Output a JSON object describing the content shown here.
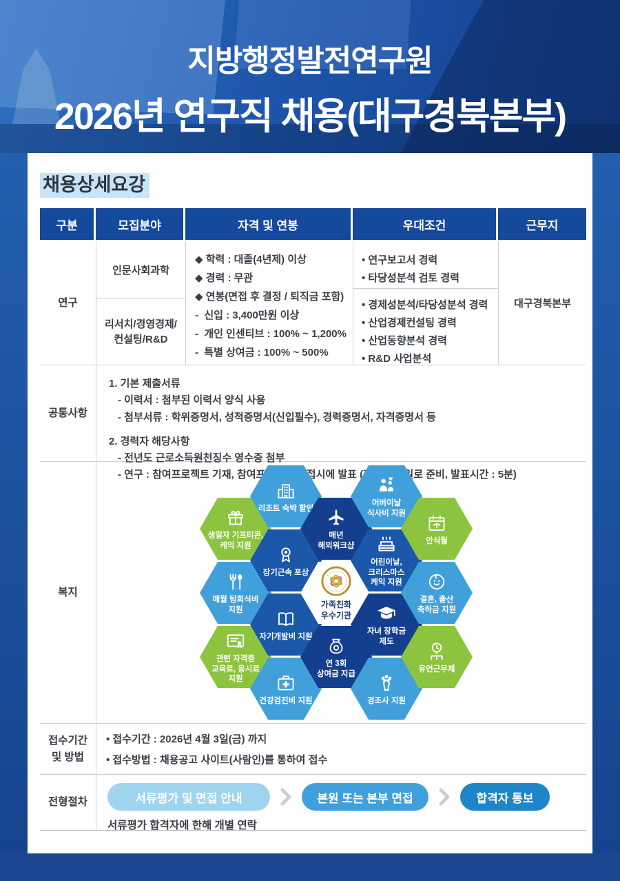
{
  "colors": {
    "page_blue_top": "#2565b6",
    "page_blue_bottom": "#16438c",
    "brand_navy": "#15499b",
    "highlight_blue": "#c7e5f7",
    "hex_lightblue": "#41a0da",
    "hex_green": "#8cc43f",
    "hex_navy": "#143f8e",
    "hex_royal": "#1b58a9",
    "pill_light": "#9fd4f1",
    "pill_mid": "#3fa0dc",
    "pill_dark": "#1e85c9",
    "footer_blue": "#1b4791"
  },
  "header": {
    "title_line1": "지방행정발전연구원",
    "title_line2": "2026년 연구직 채용(대구경북본부)"
  },
  "section_title": "채용상세요강",
  "table": {
    "columns": [
      "구분",
      "모집분야",
      "자격 및 연봉",
      "우대조건",
      "근무지"
    ],
    "research": {
      "category": "연구",
      "field_top": "인문사회과학",
      "field_bottom": "리서치/경영경제/\n컨설팅/R&D",
      "qual_diamonds": [
        "◆ 학력 : 대졸(4년제) 이상",
        "◆ 경력 : 무관",
        "◆ 연봉(면접 후 결정 / 퇴직금 포함)"
      ],
      "qual_dashes": [
        "-  신입 : 3,400만원 이상",
        "-  개인 인센티브 : 100% ~ 1,200%",
        "-  특별 상여금 : 100% ~ 500%"
      ],
      "preferred_top": [
        "• 연구보고서 경력",
        "• 타당성분석 검토 경력"
      ],
      "preferred_bottom": [
        "• 경제성분석/타당성분석 경력",
        "• 산업경제컨설팅 경력",
        "• 산업동향분석 경력",
        "• R&D 사업분석"
      ],
      "location": "대구경북본부"
    },
    "common": {
      "category": "공통사항",
      "group1_title": "1. 기본 제출서류",
      "group1_items": [
        "- 이력서 : 첨부된 이력서 양식 사용",
        "- 첨부서류 : 학위증명서, 성적증명서(신입필수), 경력증명서, 자격증명서 등"
      ],
      "group2_title": "2. 경력자 해당사항",
      "group2_items": [
        "- 전년도 근로소득원천징수 영수증 첨부",
        "- 연구 : 참여프로젝트 기재, 참여프로젝트 면접시에 발표 (자료는 파일로 준비, 발표시간 : 5분)"
      ]
    },
    "welfare": {
      "category": "복지",
      "hexagons": [
        {
          "label": "생일자 기프티콘,\n케익 지원",
          "color": "green",
          "icon": "gift",
          "col": 0,
          "row": 0
        },
        {
          "label": "매월 팀회식비\n지원",
          "color": "lightblue",
          "icon": "cutlery",
          "col": 0,
          "row": 1
        },
        {
          "label": "관련 자격증\n교육료, 응시료\n지원",
          "color": "green",
          "icon": "certificate",
          "col": 0,
          "row": 2
        },
        {
          "label": "리조트 숙박 할인",
          "color": "lightblue",
          "icon": "resort",
          "col": 1,
          "row": 0
        },
        {
          "label": "장기근속 포상",
          "color": "royal",
          "icon": "medal",
          "col": 1,
          "row": 1
        },
        {
          "label": "자기개발비 지원",
          "color": "royal",
          "icon": "book",
          "col": 1,
          "row": 2
        },
        {
          "label": "건강검진비 지원",
          "color": "lightblue",
          "icon": "first-aid",
          "col": 1,
          "row": 3
        },
        {
          "label": "매년\n해외워크샵",
          "color": "navy",
          "icon": "airplane",
          "col": 2,
          "row": 0
        },
        {
          "label": "가족친화\n우수기관",
          "color": "white",
          "icon": "family-seal",
          "col": 2,
          "row": 1
        },
        {
          "label": "연 3회\n상여금 지급",
          "color": "navy",
          "icon": "money-bag",
          "col": 2,
          "row": 2
        },
        {
          "label": "어버이날\n식사비 지원",
          "color": "lightblue",
          "icon": "family",
          "col": 3,
          "row": 0
        },
        {
          "label": "어린이날,\n크리스마스\n케익 지원",
          "color": "royal",
          "icon": "cake",
          "col": 3,
          "row": 1
        },
        {
          "label": "자녀 장학금\n제도",
          "color": "navy",
          "icon": "graduation-cap",
          "col": 3,
          "row": 2
        },
        {
          "label": "경조사 지원",
          "color": "lightblue",
          "icon": "bouquet",
          "col": 3,
          "row": 3
        },
        {
          "label": "안식월",
          "color": "green",
          "icon": "calendar",
          "col": 4,
          "row": 0
        },
        {
          "label": "결혼, 출산\n축하금 지원",
          "color": "lightblue",
          "icon": "baby",
          "col": 4,
          "row": 1
        },
        {
          "label": "유연근무제",
          "color": "green",
          "icon": "flex-time",
          "col": 4,
          "row": 2
        }
      ]
    },
    "apply": {
      "category": "접수기간\n및 방법",
      "line1_prefix": "• 접수기간 : ",
      "line1_bold": "2026년 4월 3일(금) 까지",
      "line2": "• 접수방법 : 채용공고 사이트(사람인)를 통하여 접수"
    },
    "process": {
      "category": "전형절차",
      "steps": [
        "서류평가 및 면접 안내",
        "본원 또는 본부 면접",
        "합격자 통보"
      ],
      "note": "서류평가 합격자에 한해 개별 연락"
    }
  }
}
